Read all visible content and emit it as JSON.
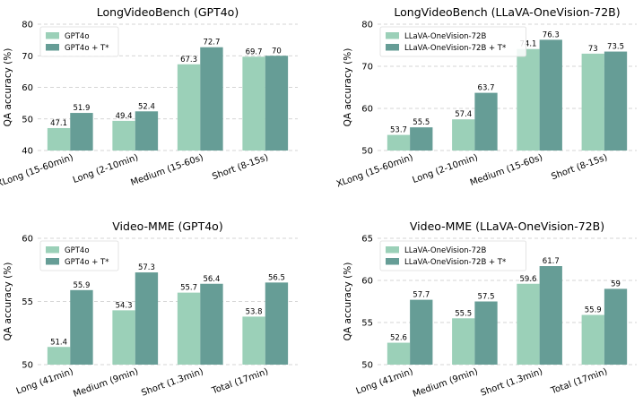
{
  "colors": {
    "base": "#9bd0b8",
    "tstar": "#669d96",
    "grid": "#c8c8c8"
  },
  "chart_data": [
    {
      "type": "bar",
      "title": "LongVideoBench (GPT4o)",
      "ylabel": "QA accuracy (%)",
      "ylim": [
        40,
        80
      ],
      "yticks": [
        40,
        50,
        60,
        70,
        80
      ],
      "grid": true,
      "legend_position": "top-left",
      "categories": [
        "XLong (15-60min)",
        "Long (2-10min)",
        "Medium (15-60s)",
        "Short (8-15s)"
      ],
      "series": [
        {
          "name": "GPT4o",
          "values": [
            47.1,
            49.4,
            67.3,
            69.7
          ]
        },
        {
          "name": "GPT4o + T*",
          "values": [
            51.9,
            52.4,
            72.7,
            70.0
          ]
        }
      ]
    },
    {
      "type": "bar",
      "title": "LongVideoBench (LLaVA-OneVision-72B)",
      "ylabel": "QA accuracy (%)",
      "ylim": [
        50,
        80
      ],
      "yticks": [
        50,
        60,
        70,
        80
      ],
      "grid": true,
      "legend_position": "top-left",
      "categories": [
        "XLong (15-60min)",
        "Long (2-10min)",
        "Medium (15-60s)",
        "Short (8-15s)"
      ],
      "series": [
        {
          "name": "LLaVA-OneVision-72B",
          "values": [
            53.7,
            57.4,
            74.1,
            73.0
          ]
        },
        {
          "name": "LLaVA-OneVision-72B + T*",
          "values": [
            55.5,
            63.7,
            76.3,
            73.5
          ]
        }
      ]
    },
    {
      "type": "bar",
      "title": "Video-MME (GPT4o)",
      "ylabel": "QA accuracy (%)",
      "ylim": [
        50,
        60
      ],
      "yticks": [
        50,
        55,
        60
      ],
      "grid": true,
      "legend_position": "top-left",
      "categories": [
        "Long (41min)",
        "Medium (9min)",
        "Short (1.3min)",
        "Total (17min)"
      ],
      "series": [
        {
          "name": "GPT4o",
          "values": [
            51.4,
            54.3,
            55.7,
            53.8
          ]
        },
        {
          "name": "GPT4o + T*",
          "values": [
            55.9,
            57.3,
            56.4,
            56.5
          ]
        }
      ]
    },
    {
      "type": "bar",
      "title": "Video-MME (LLaVA-OneVision-72B)",
      "ylabel": "QA accuracy (%)",
      "ylim": [
        50,
        65
      ],
      "yticks": [
        50,
        55,
        60,
        65
      ],
      "grid": true,
      "legend_position": "top-left",
      "categories": [
        "Long (41min)",
        "Medium (9min)",
        "Short (1.3min)",
        "Total (17min)"
      ],
      "series": [
        {
          "name": "LLaVA-OneVision-72B",
          "values": [
            52.6,
            55.5,
            59.6,
            55.9
          ]
        },
        {
          "name": "LLaVA-OneVision-72B + T*",
          "values": [
            57.7,
            57.5,
            61.7,
            59.0
          ]
        }
      ]
    }
  ]
}
